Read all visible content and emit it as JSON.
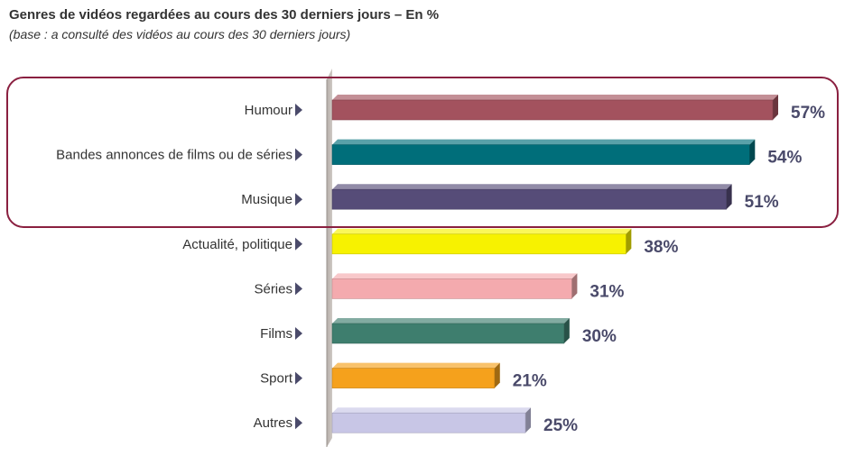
{
  "chart_data": {
    "type": "bar",
    "orientation": "horizontal",
    "title": "Genres de vidéos regardées au cours des 30 derniers jours  – En %",
    "subtitle": "(base : a consulté des vidéos au cours des 30 derniers jours)",
    "categories": [
      "Humour",
      "Bandes annonces de films ou de séries",
      "Musique",
      "Actualité, politique",
      "Séries",
      "Films",
      "Sport",
      "Autres"
    ],
    "values": [
      57,
      54,
      51,
      38,
      31,
      30,
      21,
      25
    ],
    "value_labels": [
      "57%",
      "54%",
      "51%",
      "38%",
      "31%",
      "30%",
      "21%",
      "25%"
    ],
    "colors": [
      "#a3525e",
      "#006e7a",
      "#564c78",
      "#f7f200",
      "#f4aaae",
      "#3e7e6e",
      "#f5a11c",
      "#c8c6e6"
    ],
    "xlim": [
      0,
      57
    ],
    "grid": false,
    "highlight": {
      "categories": [
        "Humour",
        "Bandes annonces de films ou de séries",
        "Musique"
      ],
      "border_color": "#8a2040"
    }
  }
}
